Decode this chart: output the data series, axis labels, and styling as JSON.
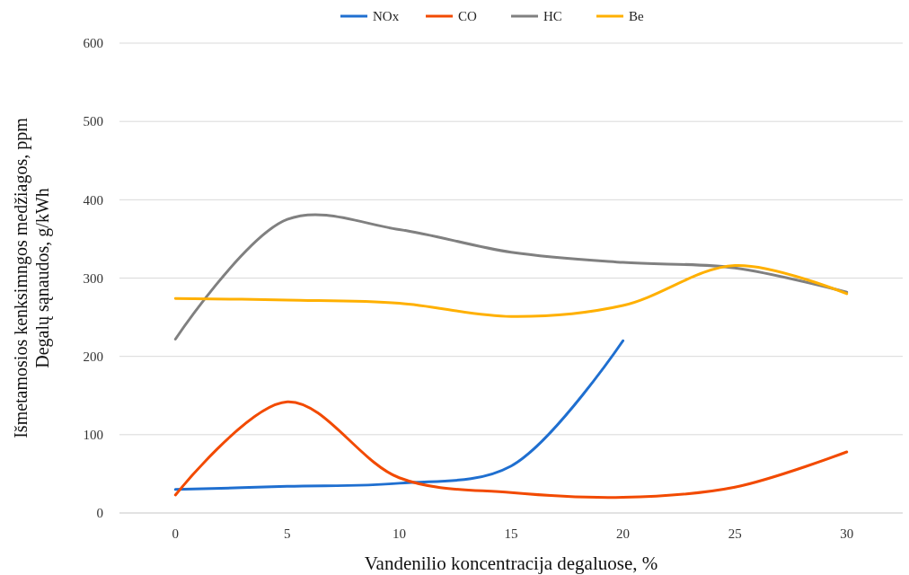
{
  "chart_data": {
    "type": "line",
    "xlabel": "Vandenilio koncentracija degaluose, %",
    "ylabel": "Išmetamosios kenksimngos medžiagos, ppm\nDegalų sąnaudos, g/kWh",
    "categories": [
      "0",
      "5",
      "10",
      "15",
      "20",
      "25",
      "30"
    ],
    "series": [
      {
        "name": "NOx",
        "color": "#1f6fd0",
        "values": [
          30,
          34,
          38,
          60,
          220,
          null,
          null
        ]
      },
      {
        "name": "CO",
        "color": "#f24a00",
        "values": [
          23,
          142,
          45,
          26,
          20,
          33,
          78
        ]
      },
      {
        "name": "HC",
        "color": "#808080",
        "values": [
          222,
          375,
          362,
          333,
          320,
          313,
          282
        ]
      },
      {
        "name": "Be",
        "color": "#ffb000",
        "values": [
          274,
          272,
          268,
          251,
          265,
          316,
          280
        ]
      }
    ],
    "ylim": [
      0,
      600
    ],
    "yticks": [
      0,
      100,
      200,
      300,
      400,
      500,
      600
    ],
    "grid": "y",
    "legend": "top",
    "marker": "none",
    "line_style": "solid"
  }
}
